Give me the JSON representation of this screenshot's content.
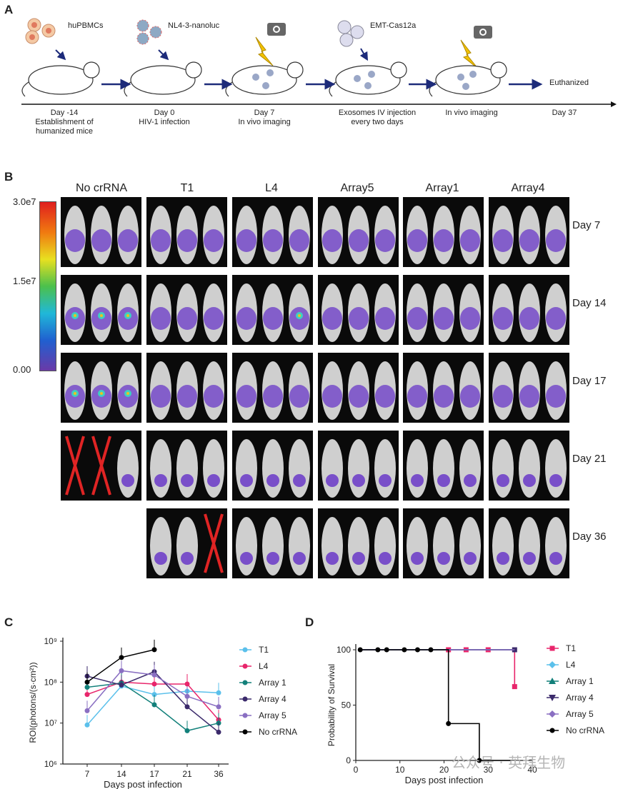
{
  "panelA": {
    "letter": "A",
    "labels_top": [
      "huPBMCs",
      "NL4-3-nanoluc",
      "EMT-Cas12a",
      "Euthanized"
    ],
    "timeline": [
      {
        "day": "Day -14",
        "desc1": "Establishment of",
        "desc2": "humanized mice"
      },
      {
        "day": "Day 0",
        "desc1": "HIV-1 infection",
        "desc2": ""
      },
      {
        "day": "Day 7",
        "desc1": "In vivo imaging",
        "desc2": ""
      },
      {
        "day": "Exosomes IV injection",
        "desc1": "every two days",
        "desc2": ""
      },
      {
        "day": "In vivo imaging",
        "desc1": "",
        "desc2": ""
      },
      {
        "day": "Day 37",
        "desc1": "",
        "desc2": ""
      }
    ]
  },
  "panelB": {
    "letter": "B",
    "columns": [
      "No crRNA",
      "T1",
      "L4",
      "Array5",
      "Array1",
      "Array4"
    ],
    "rows": [
      "Day 7",
      "Day 14",
      "Day 17",
      "Day 21",
      "Day 36"
    ],
    "colorbar": {
      "max": "3.0e7",
      "mid": "1.5e7",
      "min": "0.00"
    }
  },
  "panelC": {
    "letter": "C",
    "chart_data": {
      "type": "line",
      "ylabel": "ROI(photons/(s·cm²))",
      "xlabel": "Days post infection",
      "x_ticks": [
        "7",
        "14",
        "17",
        "21",
        "36"
      ],
      "y_scale": "log",
      "ylim": [
        1000000,
        1000000000
      ],
      "y_ticks": [
        "10⁶",
        "10⁷",
        "10⁸",
        "10⁹"
      ],
      "series": [
        {
          "name": "T1",
          "color": "#5bc0eb",
          "values": [
            9000000,
            80000000,
            50000000,
            60000000,
            55000000
          ]
        },
        {
          "name": "L4",
          "color": "#e8256b",
          "values": [
            50000000,
            100000000,
            90000000,
            90000000,
            12000000
          ]
        },
        {
          "name": "Array 1",
          "color": "#12807a",
          "values": [
            75000000,
            95000000,
            28000000,
            6500000,
            10000000
          ]
        },
        {
          "name": "Array 4",
          "color": "#3b2a6b",
          "values": [
            140000000,
            85000000,
            180000000,
            25000000,
            6000000
          ]
        },
        {
          "name": "Array 5",
          "color": "#8a6fc2",
          "values": [
            20000000,
            190000000,
            150000000,
            45000000,
            25000000
          ]
        },
        {
          "name": "No crRNA",
          "color": "#000000",
          "values": [
            100000000,
            400000000,
            620000000,
            null,
            null
          ]
        }
      ]
    }
  },
  "panelD": {
    "letter": "D",
    "chart_data": {
      "type": "line",
      "ylabel": "Probability of Survival",
      "xlabel": "Days post infection",
      "xlim": [
        0,
        40
      ],
      "ylim": [
        0,
        100
      ],
      "x_ticks": [
        "0",
        "10",
        "20",
        "30",
        "40"
      ],
      "y_ticks": [
        "0",
        "50",
        "100"
      ],
      "series": [
        {
          "name": "T1",
          "color": "#e8256b",
          "steps": [
            [
              1,
              100
            ],
            [
              36,
              100
            ],
            [
              36,
              66.7
            ]
          ]
        },
        {
          "name": "L4",
          "color": "#5bc0eb",
          "steps": [
            [
              1,
              100
            ],
            [
              36,
              100
            ]
          ]
        },
        {
          "name": "Array 1",
          "color": "#12807a",
          "steps": [
            [
              1,
              100
            ],
            [
              36,
              100
            ]
          ]
        },
        {
          "name": "Array 4",
          "color": "#3b2a6b",
          "steps": [
            [
              1,
              100
            ],
            [
              36,
              100
            ]
          ]
        },
        {
          "name": "Array 5",
          "color": "#8a6fc2",
          "steps": [
            [
              1,
              100
            ],
            [
              36,
              100
            ]
          ]
        },
        {
          "name": "No crRNA",
          "color": "#000000",
          "steps": [
            [
              1,
              100
            ],
            [
              21,
              100
            ],
            [
              21,
              33.3
            ],
            [
              28,
              33.3
            ],
            [
              28,
              0
            ],
            [
              37,
              0
            ]
          ]
        }
      ]
    }
  },
  "watermark": "公众号 · 英拜生物"
}
